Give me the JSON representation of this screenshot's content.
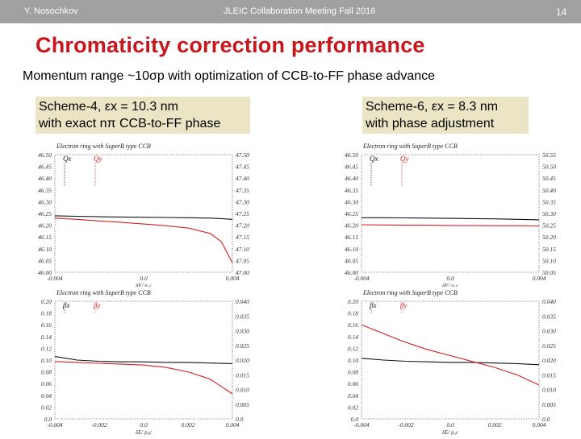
{
  "header": {
    "author": "Y. Nosochkov",
    "meeting": "JLEIC Collaboration Meeting Fall 2016",
    "page": "14"
  },
  "title": "Chromaticity correction performance",
  "subtitle": "Momentum range ~10σp with optimization of CCB-to-FF phase advance",
  "schemes": [
    {
      "line1": "Scheme-4, εx = 10.3 nm",
      "line2": "with exact nπ CCB-to-FF phase"
    },
    {
      "line1": "Scheme-6, εx = 8.3 nm",
      "line2": "with phase adjustment"
    }
  ],
  "colors": {
    "title": "#c8161d",
    "topbar": "#9fa29f",
    "callout": "#ebe5c5",
    "curve_red": "#d42020",
    "curve_black": "#111111"
  },
  "chart_data": [
    {
      "type": "line",
      "panel": "Scheme-4 tune vs momentum",
      "title": "Electron ring with SuperB type CCB",
      "xlabel": "δE/ p₀c",
      "xlim": [
        -0.004,
        0.004
      ],
      "x_ticks": [
        "-0.004",
        "0.0",
        "0.004"
      ],
      "ylim_left": [
        46.0,
        46.5
      ],
      "ylim_right": [
        47.0,
        47.5
      ],
      "y_ticks_left": [
        "46.50",
        "46.45",
        "46.40",
        "46.35",
        "46.30",
        "46.25",
        "46.20",
        "46.15",
        "46.10",
        "46.05",
        "46.00"
      ],
      "y_ticks_right": [
        "47.50",
        "47.45",
        "47.40",
        "47.35",
        "47.30",
        "47.25",
        "47.20",
        "47.15",
        "47.10",
        "47.05",
        "47.00"
      ],
      "series": [
        {
          "name": "Qx",
          "axis": "left",
          "x": [
            -0.004,
            -0.003,
            -0.002,
            -0.001,
            0.0,
            0.001,
            0.002,
            0.003,
            0.0035,
            0.004
          ],
          "y": [
            46.24,
            46.238,
            46.236,
            46.235,
            46.234,
            46.233,
            46.232,
            46.23,
            46.228,
            46.225
          ]
        },
        {
          "name": "Qy",
          "axis": "right",
          "x": [
            -0.004,
            -0.003,
            -0.002,
            -0.001,
            0.0,
            0.001,
            0.002,
            0.003,
            0.0035,
            0.004
          ],
          "y": [
            47.23,
            47.225,
            47.218,
            47.212,
            47.205,
            47.198,
            47.188,
            47.165,
            47.13,
            47.04
          ]
        }
      ]
    },
    {
      "type": "line",
      "panel": "Scheme-6 tune vs momentum",
      "title": "Electron ring with SuperB type CCB",
      "xlabel": "δE/ p₀c",
      "xlim": [
        -0.004,
        0.004
      ],
      "x_ticks": [
        "-0.004",
        "0.0",
        "0.004"
      ],
      "ylim_left": [
        46.0,
        46.5
      ],
      "ylim_right": [
        50.0,
        50.5
      ],
      "y_ticks_left": [
        "46.50",
        "46.45",
        "46.40",
        "46.35",
        "46.30",
        "46.25",
        "46.20",
        "46.15",
        "46.10",
        "46.05",
        "46.00"
      ],
      "y_ticks_right": [
        "50.55",
        "50.50",
        "50.45",
        "50.40",
        "50.35",
        "50.30",
        "50.25",
        "50.20",
        "50.15",
        "50.10",
        "50.05"
      ],
      "series": [
        {
          "name": "Qx",
          "axis": "left",
          "x": [
            -0.004,
            -0.003,
            -0.002,
            -0.001,
            0.0,
            0.001,
            0.002,
            0.003,
            0.004
          ],
          "y": [
            46.232,
            46.232,
            46.231,
            46.23,
            46.229,
            46.228,
            46.227,
            46.225,
            46.223
          ]
        },
        {
          "name": "Qy",
          "axis": "right",
          "x": [
            -0.004,
            -0.003,
            -0.002,
            -0.001,
            0.0,
            0.001,
            0.002,
            0.003,
            0.004
          ],
          "y": [
            50.202,
            50.201,
            50.2,
            50.2,
            50.199,
            50.199,
            50.198,
            50.198,
            50.197
          ]
        }
      ]
    },
    {
      "type": "line",
      "panel": "Scheme-4 beta* vs momentum",
      "title": "Electron ring with SuperB type CCB",
      "xlabel": "δE/ p₀c",
      "xlim": [
        -0.004,
        0.004
      ],
      "x_ticks": [
        "-0.004",
        "-0.002",
        "0.0",
        "0.002",
        "0.004"
      ],
      "ylim_left": [
        0.0,
        0.2
      ],
      "ylim_right": [
        0.0,
        0.04
      ],
      "y_ticks_left": [
        "0.20",
        "0.18",
        "0.16",
        "0.14",
        "0.12",
        "0.10",
        "0.08",
        "0.06",
        "0.04",
        "0.02",
        "0.0"
      ],
      "y_ticks_right": [
        "0.040",
        "0.035",
        "0.030",
        "0.025",
        "0.020",
        "0.015",
        "0.010",
        "0.005",
        "0.0"
      ],
      "series": [
        {
          "name": "βx",
          "axis": "left",
          "x": [
            -0.004,
            -0.003,
            -0.002,
            -0.001,
            0.0,
            0.001,
            0.002,
            0.003,
            0.004
          ],
          "y": [
            0.106,
            0.1,
            0.098,
            0.097,
            0.097,
            0.096,
            0.096,
            0.095,
            0.094
          ]
        },
        {
          "name": "βy",
          "axis": "right",
          "x": [
            -0.004,
            -0.003,
            -0.002,
            -0.001,
            0.0,
            0.001,
            0.002,
            0.003,
            0.004
          ],
          "y": [
            0.0195,
            0.0192,
            0.0189,
            0.0186,
            0.0183,
            0.0175,
            0.016,
            0.0135,
            0.0085
          ]
        }
      ]
    },
    {
      "type": "line",
      "panel": "Scheme-6 beta* vs momentum",
      "title": "Electron ring with SuperB type CCB",
      "xlabel": "δE/ p₀c",
      "xlim": [
        -0.004,
        0.004
      ],
      "x_ticks": [
        "-0.004",
        "-0.002",
        "0.0",
        "0.002",
        "0.004"
      ],
      "ylim_left": [
        0.0,
        0.2
      ],
      "ylim_right": [
        0.0,
        0.04
      ],
      "y_ticks_left": [
        "0.20",
        "0.18",
        "0.16",
        "0.14",
        "0.12",
        "0.10",
        "0.08",
        "0.06",
        "0.04",
        "0.02",
        "0.0"
      ],
      "y_ticks_right": [
        "0.040",
        "0.035",
        "0.030",
        "0.025",
        "0.020",
        "0.015",
        "0.010",
        "0.005",
        "0.0"
      ],
      "series": [
        {
          "name": "βx",
          "axis": "left",
          "x": [
            -0.004,
            -0.003,
            -0.002,
            -0.001,
            0.0,
            0.001,
            0.002,
            0.003,
            0.004
          ],
          "y": [
            0.103,
            0.1,
            0.098,
            0.097,
            0.096,
            0.096,
            0.095,
            0.094,
            0.092
          ]
        },
        {
          "name": "βy",
          "axis": "right",
          "x": [
            -0.004,
            -0.003,
            -0.002,
            -0.001,
            0.0,
            0.001,
            0.002,
            0.003,
            0.004
          ],
          "y": [
            0.032,
            0.029,
            0.026,
            0.0235,
            0.0215,
            0.0195,
            0.0175,
            0.015,
            0.0115
          ]
        }
      ]
    }
  ]
}
